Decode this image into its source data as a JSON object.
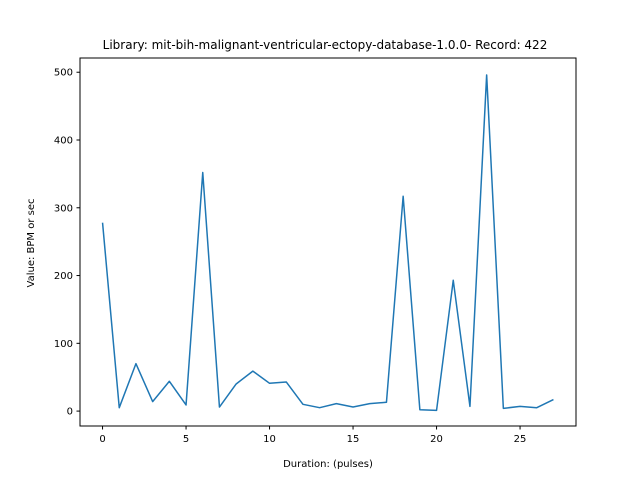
{
  "chart_data": {
    "type": "line",
    "title": "Library: mit-bih-malignant-ventricular-ectopy-database-1.0.0- Record: 422",
    "xlabel": "Duration: (pulses)",
    "ylabel": "Value: BPM or sec",
    "xlim": [
      -1.35,
      28.35
    ],
    "ylim": [
      -22,
      521
    ],
    "xticks": [
      0,
      5,
      10,
      15,
      20,
      25
    ],
    "yticks": [
      0,
      100,
      200,
      300,
      400,
      500
    ],
    "grid": false,
    "series": [
      {
        "color": "#1f77b4",
        "x": [
          0,
          1,
          2,
          3,
          4,
          5,
          6,
          7,
          8,
          9,
          10,
          11,
          12,
          13,
          14,
          15,
          16,
          17,
          18,
          19,
          20,
          21,
          22,
          23,
          24,
          25,
          26,
          27
        ],
        "y": [
          278,
          5,
          70,
          14,
          44,
          9,
          352,
          6,
          40,
          59,
          41,
          43,
          10,
          5,
          11,
          6,
          11,
          13,
          317,
          2,
          1,
          193,
          7,
          496,
          4,
          7,
          5,
          17
        ]
      }
    ]
  }
}
